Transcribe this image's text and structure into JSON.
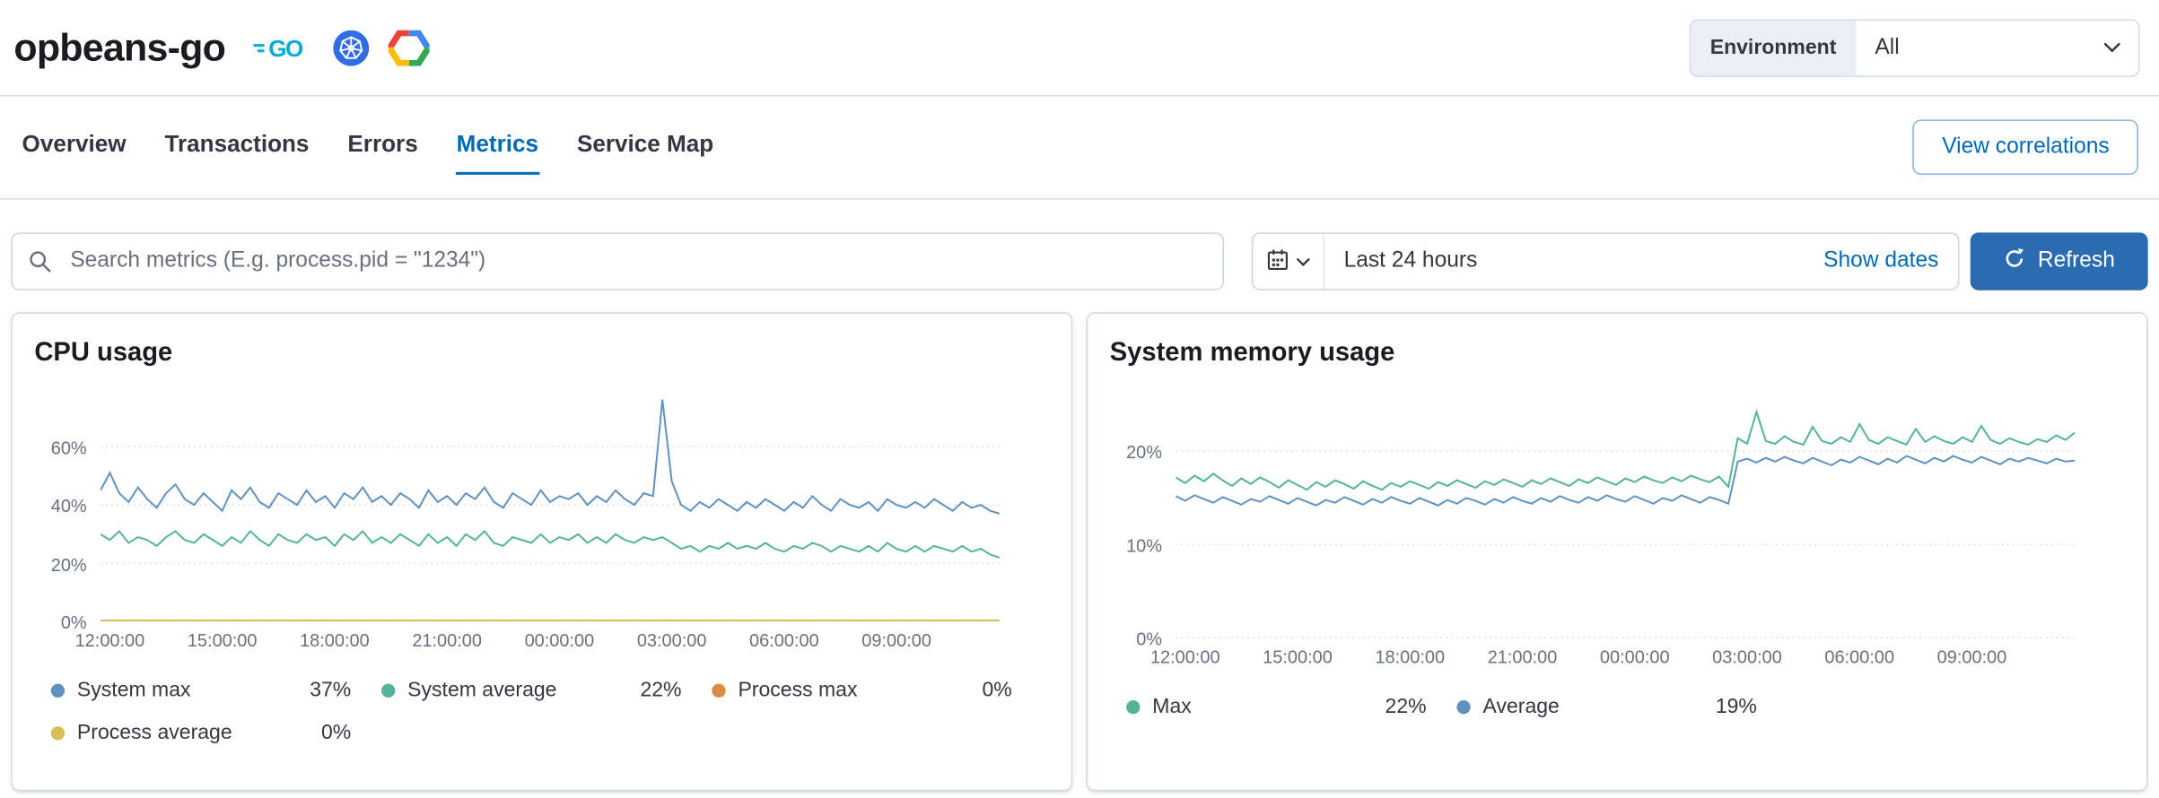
{
  "header": {
    "title": "opbeans-go",
    "environment_label": "Environment",
    "environment_value": "All"
  },
  "tabs": {
    "items": [
      {
        "label": "Overview",
        "active": false
      },
      {
        "label": "Transactions",
        "active": false
      },
      {
        "label": "Errors",
        "active": false
      },
      {
        "label": "Metrics",
        "active": true
      },
      {
        "label": "Service Map",
        "active": false
      }
    ],
    "view_correlations_label": "View correlations"
  },
  "controls": {
    "search_placeholder": "Search metrics (E.g. process.pid = \"1234\")",
    "time_range": "Last 24 hours",
    "show_dates_label": "Show dates",
    "refresh_label": "Refresh"
  },
  "colors": {
    "link_blue": "#006BB4",
    "refresh_button_blue": "#2B6CB0",
    "tab_active_blue": "#006BB4",
    "panel_border": "#D3DAE6",
    "series_green": "#54B399",
    "series_blue": "#6092C0",
    "series_orange": "#DA8B45",
    "series_yellow": "#D6BF57"
  },
  "chart_data": [
    {
      "type": "line",
      "title": "CPU usage",
      "ymax": 80,
      "yticks": [
        {
          "value": 0,
          "label": "0%"
        },
        {
          "value": 20,
          "label": "20%"
        },
        {
          "value": 40,
          "label": "40%"
        },
        {
          "value": 60,
          "label": "60%"
        }
      ],
      "xticks": [
        {
          "label": "12:00:00",
          "f": 0.0104
        },
        {
          "label": "15:00:00",
          "f": 0.1354
        },
        {
          "label": "18:00:00",
          "f": 0.2604
        },
        {
          "label": "21:00:00",
          "f": 0.3854
        },
        {
          "label": "00:00:00",
          "f": 0.5104
        },
        {
          "label": "03:00:00",
          "f": 0.6354
        },
        {
          "label": "06:00:00",
          "f": 0.7604
        },
        {
          "label": "09:00:00",
          "f": 0.8854
        }
      ],
      "series": [
        {
          "name": "System max",
          "color": "#6092C0",
          "legend_value": "37%",
          "values": [
            45,
            51,
            44,
            41,
            46,
            42,
            39,
            44,
            47,
            42,
            40,
            44,
            41,
            38,
            45,
            42,
            46,
            41,
            39,
            44,
            42,
            40,
            45,
            41,
            43,
            39,
            44,
            42,
            46,
            41,
            43,
            40,
            44,
            42,
            39,
            45,
            41,
            43,
            40,
            44,
            42,
            46,
            41,
            39,
            44,
            42,
            40,
            45,
            41,
            43,
            42,
            44,
            40,
            43,
            41,
            45,
            42,
            40,
            44,
            43,
            76,
            48,
            40,
            38,
            41,
            39,
            42,
            40,
            38,
            41,
            39,
            42,
            40,
            38,
            41,
            39,
            43,
            40,
            38,
            42,
            40,
            39,
            41,
            38,
            42,
            40,
            39,
            41,
            39,
            42,
            40,
            38,
            41,
            39,
            40,
            38,
            37
          ]
        },
        {
          "name": "System average",
          "color": "#54B399",
          "legend_value": "22%",
          "values": [
            30,
            28,
            31,
            27,
            29,
            28,
            26,
            29,
            31,
            28,
            27,
            30,
            28,
            26,
            29,
            27,
            31,
            28,
            26,
            30,
            28,
            27,
            30,
            28,
            29,
            26,
            30,
            28,
            31,
            27,
            29,
            27,
            30,
            28,
            26,
            30,
            27,
            29,
            26,
            30,
            28,
            31,
            27,
            26,
            29,
            28,
            27,
            30,
            27,
            29,
            28,
            30,
            27,
            29,
            27,
            30,
            28,
            27,
            29,
            28,
            29,
            27,
            25,
            26,
            24,
            26,
            25,
            27,
            25,
            26,
            25,
            27,
            25,
            24,
            26,
            25,
            27,
            26,
            24,
            26,
            25,
            24,
            26,
            24,
            27,
            25,
            24,
            26,
            24,
            26,
            25,
            24,
            26,
            24,
            25,
            23,
            22
          ]
        },
        {
          "name": "Process max",
          "color": "#DA8B45",
          "legend_value": "0%",
          "values": [
            0,
            0
          ]
        },
        {
          "name": "Process average",
          "color": "#D6BF57",
          "legend_value": "0%",
          "values": [
            0,
            0
          ]
        }
      ]
    },
    {
      "type": "line",
      "title": "System memory usage",
      "ymax": 25,
      "yticks": [
        {
          "value": 0,
          "label": "0%"
        },
        {
          "value": 10,
          "label": "10%"
        },
        {
          "value": 20,
          "label": "20%"
        }
      ],
      "xticks": [
        {
          "label": "12:00:00",
          "f": 0.0104
        },
        {
          "label": "15:00:00",
          "f": 0.1354
        },
        {
          "label": "18:00:00",
          "f": 0.2604
        },
        {
          "label": "21:00:00",
          "f": 0.3854
        },
        {
          "label": "00:00:00",
          "f": 0.5104
        },
        {
          "label": "03:00:00",
          "f": 0.6354
        },
        {
          "label": "06:00:00",
          "f": 0.7604
        },
        {
          "label": "09:00:00",
          "f": 0.8854
        }
      ],
      "series": [
        {
          "name": "Max",
          "color": "#54B399",
          "legend_value": "22%",
          "values": [
            17.2,
            16.6,
            17.4,
            16.8,
            17.6,
            16.9,
            16.3,
            17.1,
            16.5,
            17.2,
            16.7,
            16.1,
            16.9,
            16.4,
            15.9,
            16.7,
            16.2,
            16.9,
            16.5,
            16.0,
            16.8,
            16.3,
            15.9,
            16.6,
            16.2,
            16.8,
            16.4,
            16.0,
            16.7,
            16.3,
            16.9,
            16.5,
            16.1,
            16.8,
            16.4,
            17.0,
            16.6,
            16.2,
            16.9,
            16.5,
            17.1,
            16.7,
            16.3,
            17.0,
            16.6,
            17.2,
            16.8,
            16.4,
            17.1,
            16.7,
            17.3,
            16.9,
            16.6,
            17.2,
            16.8,
            17.4,
            17.0,
            16.7,
            17.3,
            16.2,
            21.4,
            20.8,
            24.2,
            21.1,
            20.8,
            21.6,
            21.0,
            20.7,
            22.6,
            21.1,
            20.8,
            21.5,
            21.0,
            22.9,
            21.2,
            20.8,
            21.5,
            21.1,
            20.7,
            22.4,
            21.0,
            21.6,
            21.1,
            20.8,
            21.5,
            21.0,
            22.7,
            21.2,
            20.8,
            21.4,
            21.0,
            20.7,
            21.3,
            21.0,
            21.7,
            21.2,
            22.0
          ]
        },
        {
          "name": "Average",
          "color": "#6092C0",
          "legend_value": "19%",
          "values": [
            15.2,
            14.7,
            15.3,
            14.9,
            14.5,
            15.1,
            14.7,
            14.3,
            14.9,
            14.6,
            15.2,
            14.8,
            14.4,
            15.0,
            14.6,
            14.2,
            14.8,
            14.5,
            15.1,
            14.7,
            14.3,
            14.9,
            14.5,
            15.1,
            14.7,
            14.4,
            15.0,
            14.6,
            14.2,
            14.8,
            14.4,
            15.0,
            14.7,
            14.3,
            14.9,
            14.5,
            15.1,
            14.7,
            14.4,
            15.0,
            14.6,
            15.2,
            14.8,
            14.5,
            15.1,
            14.7,
            15.3,
            14.9,
            14.6,
            15.2,
            14.8,
            14.4,
            15.0,
            14.7,
            15.3,
            14.9,
            14.5,
            15.1,
            14.8,
            14.4,
            18.9,
            19.2,
            18.8,
            19.3,
            18.9,
            19.4,
            19.0,
            18.7,
            19.3,
            18.9,
            18.5,
            19.1,
            18.8,
            19.4,
            19.0,
            18.6,
            19.2,
            18.8,
            19.5,
            19.1,
            18.7,
            19.3,
            18.9,
            19.5,
            19.1,
            18.8,
            19.4,
            19.0,
            18.6,
            19.2,
            18.9,
            19.3,
            19.0,
            18.7,
            19.2,
            18.9,
            19.0
          ]
        }
      ]
    }
  ]
}
